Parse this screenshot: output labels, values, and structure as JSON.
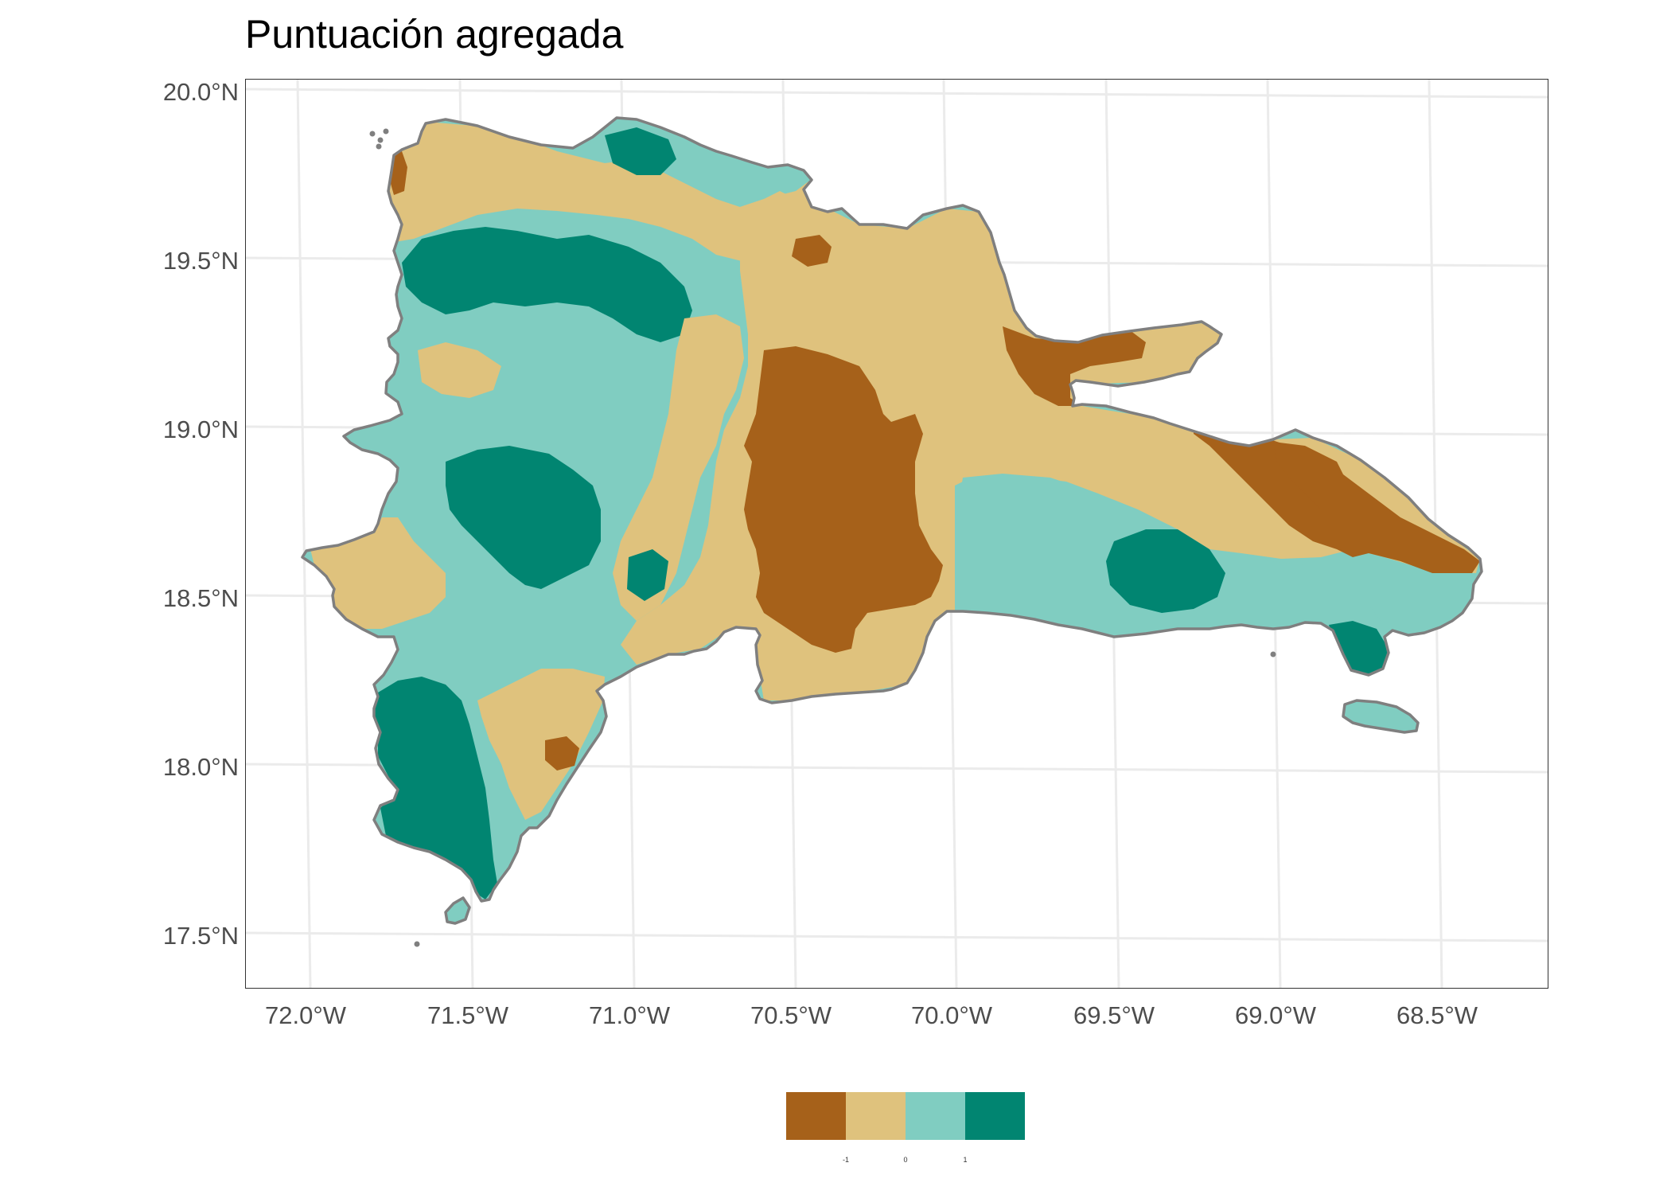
{
  "title": "Puntuación agregada",
  "axes": {
    "y_ticks": [
      "20.0°N",
      "19.5°N",
      "19.0°N",
      "18.5°N",
      "18.0°N",
      "17.5°N"
    ],
    "x_ticks": [
      "72.0°W",
      "71.5°W",
      "71.0°W",
      "70.5°W",
      "70.0°W",
      "69.5°W",
      "69.0°W",
      "68.5°W"
    ],
    "lon_range": [
      -72.2,
      -68.2
    ],
    "lat_range": [
      17.35,
      20.05
    ]
  },
  "legend": {
    "labels": [
      "-1",
      "0",
      "1"
    ],
    "colors": [
      "#a6611a",
      "#dfc27d",
      "#80cdc1",
      "#018571"
    ]
  },
  "colors": {
    "outline": "#7f7f7f",
    "grid": "#ebebeb",
    "panel_border": "#333333"
  }
}
